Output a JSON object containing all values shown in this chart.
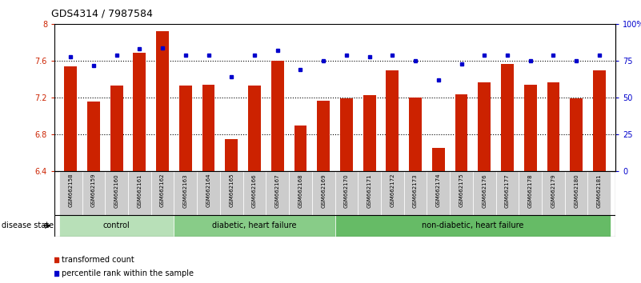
{
  "title": "GDS4314 / 7987584",
  "samples": [
    "GSM662158",
    "GSM662159",
    "GSM662160",
    "GSM662161",
    "GSM662162",
    "GSM662163",
    "GSM662164",
    "GSM662165",
    "GSM662166",
    "GSM662167",
    "GSM662168",
    "GSM662169",
    "GSM662170",
    "GSM662171",
    "GSM662172",
    "GSM662173",
    "GSM662174",
    "GSM662175",
    "GSM662176",
    "GSM662177",
    "GSM662178",
    "GSM662179",
    "GSM662180",
    "GSM662181"
  ],
  "bar_values": [
    7.54,
    7.16,
    7.33,
    7.69,
    7.92,
    7.33,
    7.34,
    6.75,
    7.33,
    7.6,
    6.9,
    7.17,
    7.19,
    7.23,
    7.5,
    7.2,
    6.65,
    7.24,
    7.37,
    7.57,
    7.34,
    7.37,
    7.19,
    7.5
  ],
  "dot_values": [
    78,
    72,
    79,
    83,
    84,
    79,
    79,
    64,
    79,
    82,
    69,
    75,
    79,
    78,
    79,
    75,
    62,
    73,
    79,
    79,
    75,
    79,
    75,
    79
  ],
  "bar_color": "#cc2200",
  "dot_color": "#0000cc",
  "ylim_left": [
    6.4,
    8.0
  ],
  "ylim_right": [
    0,
    100
  ],
  "yticks_left": [
    6.4,
    6.8,
    7.2,
    7.6,
    8.0
  ],
  "ytick_labels_left": [
    "6.4",
    "6.8",
    "7.2",
    "7.6",
    "8"
  ],
  "yticks_right": [
    0,
    25,
    50,
    75,
    100
  ],
  "ytick_labels_right": [
    "0",
    "25",
    "50",
    "75",
    "100%"
  ],
  "dotted_lines": [
    6.8,
    7.2,
    7.6
  ],
  "groups": [
    {
      "label": "control",
      "start": 0,
      "end": 5,
      "color": "#b8e0b8"
    },
    {
      "label": "diabetic, heart failure",
      "start": 5,
      "end": 12,
      "color": "#88cc88"
    },
    {
      "label": "non-diabetic, heart failure",
      "start": 12,
      "end": 24,
      "color": "#66bb66"
    }
  ],
  "legend_items": [
    {
      "label": "transformed count",
      "color": "#cc2200"
    },
    {
      "label": "percentile rank within the sample",
      "color": "#0000cc"
    }
  ],
  "disease_state_label": "disease state",
  "sample_bg_color": "#cccccc",
  "fig_width": 8.01,
  "fig_height": 3.54,
  "dpi": 100
}
